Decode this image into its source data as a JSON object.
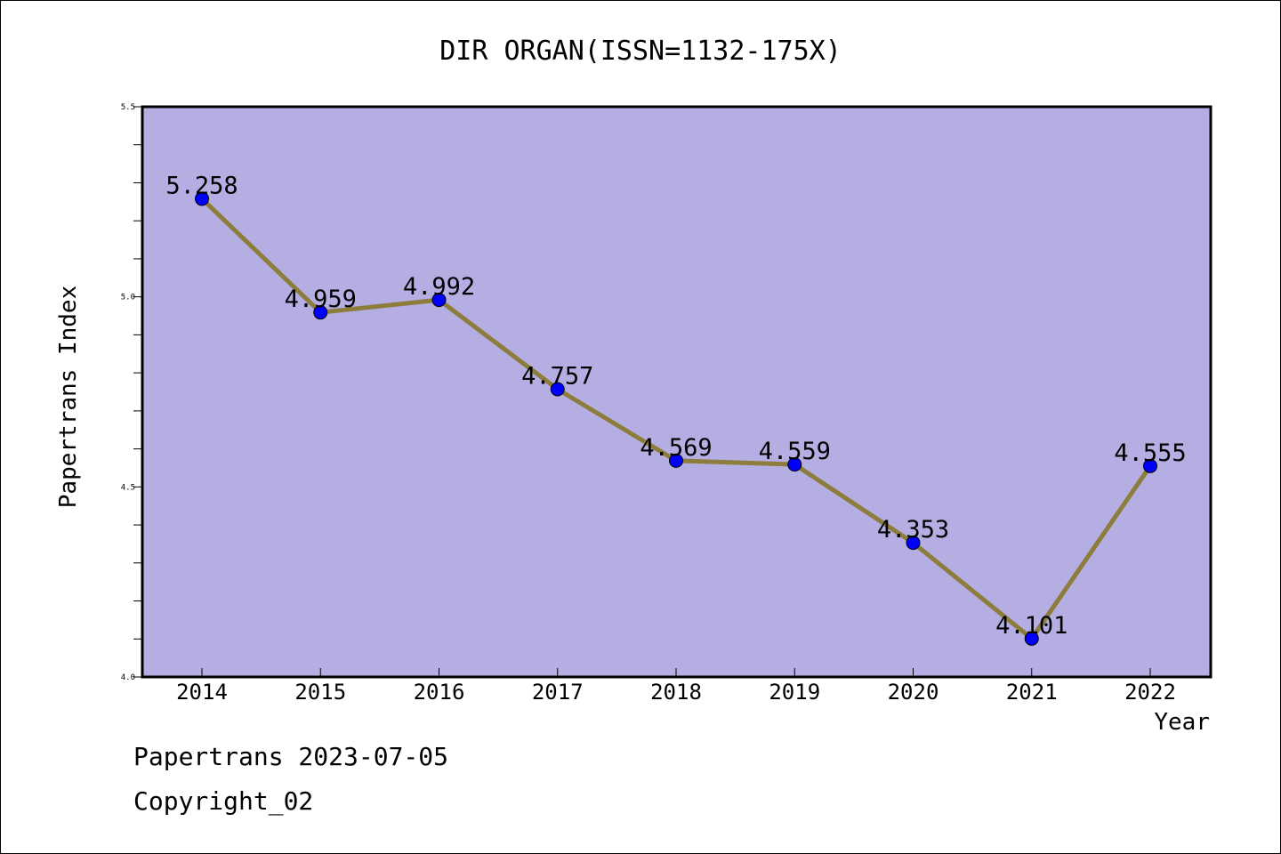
{
  "chart_data": {
    "type": "line",
    "title": "DIR ORGAN(ISSN=1132-175X)",
    "xlabel": "Year",
    "ylabel": "Papertrans Index",
    "categories": [
      "2014",
      "2015",
      "2016",
      "2017",
      "2018",
      "2019",
      "2020",
      "2021",
      "2022"
    ],
    "series": [
      {
        "values": [
          5.258,
          4.959,
          4.992,
          4.757,
          4.569,
          4.559,
          4.353,
          4.101,
          4.555
        ],
        "labels": [
          "5.258",
          "4.959",
          "4.992",
          "4.757",
          "4.569",
          "4.559",
          "4.353",
          "4.101",
          "4.555"
        ]
      }
    ],
    "ylim": [
      4.0,
      5.5
    ],
    "yticks": [
      "4.0",
      "4.5",
      "5.0",
      "5.5"
    ],
    "grid": false,
    "colors": {
      "plot_background": "#b5aee2",
      "line": "#8c7d3c",
      "marker": "#0000ff"
    }
  },
  "footer": {
    "line1": "Papertrans 2023-07-05",
    "line2": "Copyright_02"
  }
}
